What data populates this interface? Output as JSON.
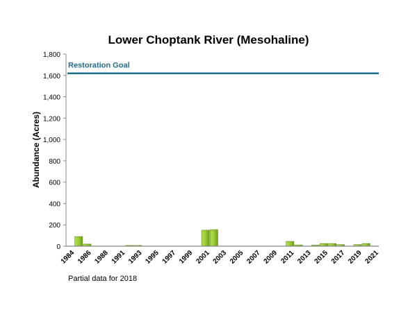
{
  "chart_data": {
    "type": "bar",
    "title": "Lower Choptank River (Mesohaline)",
    "ylabel": "Abundance (Acres)",
    "xlabel": "",
    "ylim": [
      0,
      1800
    ],
    "yticks": [
      0,
      200,
      400,
      600,
      800,
      1000,
      1200,
      1400,
      1600,
      1800
    ],
    "ytick_labels": [
      "0",
      "200",
      "400",
      "600",
      "800",
      "1,000",
      "1,200",
      "1,400",
      "1,600",
      "1,800"
    ],
    "categories": [
      "1984",
      "1985",
      "1986",
      "1987",
      "1988",
      "1989",
      "1991",
      "1992",
      "1993",
      "1994",
      "1995",
      "1996",
      "1997",
      "1998",
      "1999",
      "2000",
      "2001",
      "2002",
      "2003",
      "2004",
      "2005",
      "2006",
      "2007",
      "2008",
      "2009",
      "2010",
      "2011",
      "2012",
      "2013",
      "2014",
      "2015",
      "2016",
      "2017",
      "2018",
      "2019",
      "2020",
      "2021"
    ],
    "xtick_labels": [
      "1984",
      "1986",
      "1988",
      "1991",
      "1993",
      "1995",
      "1997",
      "1999",
      "2001",
      "2003",
      "2005",
      "2007",
      "2009",
      "2011",
      "2013",
      "2015",
      "2017",
      "2019",
      "2021"
    ],
    "values": [
      0,
      90,
      20,
      0,
      0,
      0,
      0,
      7,
      7,
      0,
      0,
      0,
      0,
      0,
      0,
      0,
      150,
      155,
      0,
      0,
      0,
      0,
      0,
      0,
      0,
      0,
      45,
      12,
      0,
      10,
      25,
      25,
      15,
      0,
      15,
      25,
      2
    ],
    "goal": {
      "label": "Restoration Goal",
      "value": 1620,
      "color": "#1f6e8c"
    },
    "bar_color": "#9acd32",
    "grid": false,
    "note": "Partial data for 2018"
  }
}
